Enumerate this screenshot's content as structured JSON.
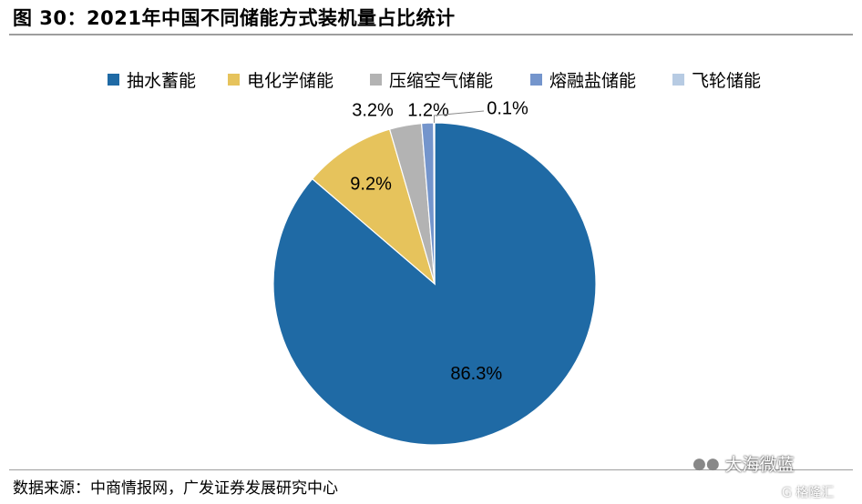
{
  "title": "图  30：2021年中国不同储能方式装机量占比统计",
  "source": "数据来源：中商情报网，广发证券发展研究中心",
  "watermark": {
    "text": "大海微蓝",
    "icon": "wechat-icon",
    "secondary": "G 格隆汇"
  },
  "chart_data": {
    "type": "pie",
    "categories": [
      "抽水蓄能",
      "电化学储能",
      "压缩空气储能",
      "熔融盐储能",
      "飞轮储能"
    ],
    "values": [
      86.3,
      9.2,
      3.2,
      1.2,
      0.1
    ],
    "labels": [
      "86.3%",
      "9.2%",
      "3.2%",
      "1.2%",
      "0.1%"
    ],
    "colors": [
      "#1f6aa5",
      "#e6c35c",
      "#b3b3b3",
      "#7495cc",
      "#b7cbe3"
    ],
    "unit": "%",
    "start": "12 o'clock, clockwise",
    "legend": "top"
  }
}
